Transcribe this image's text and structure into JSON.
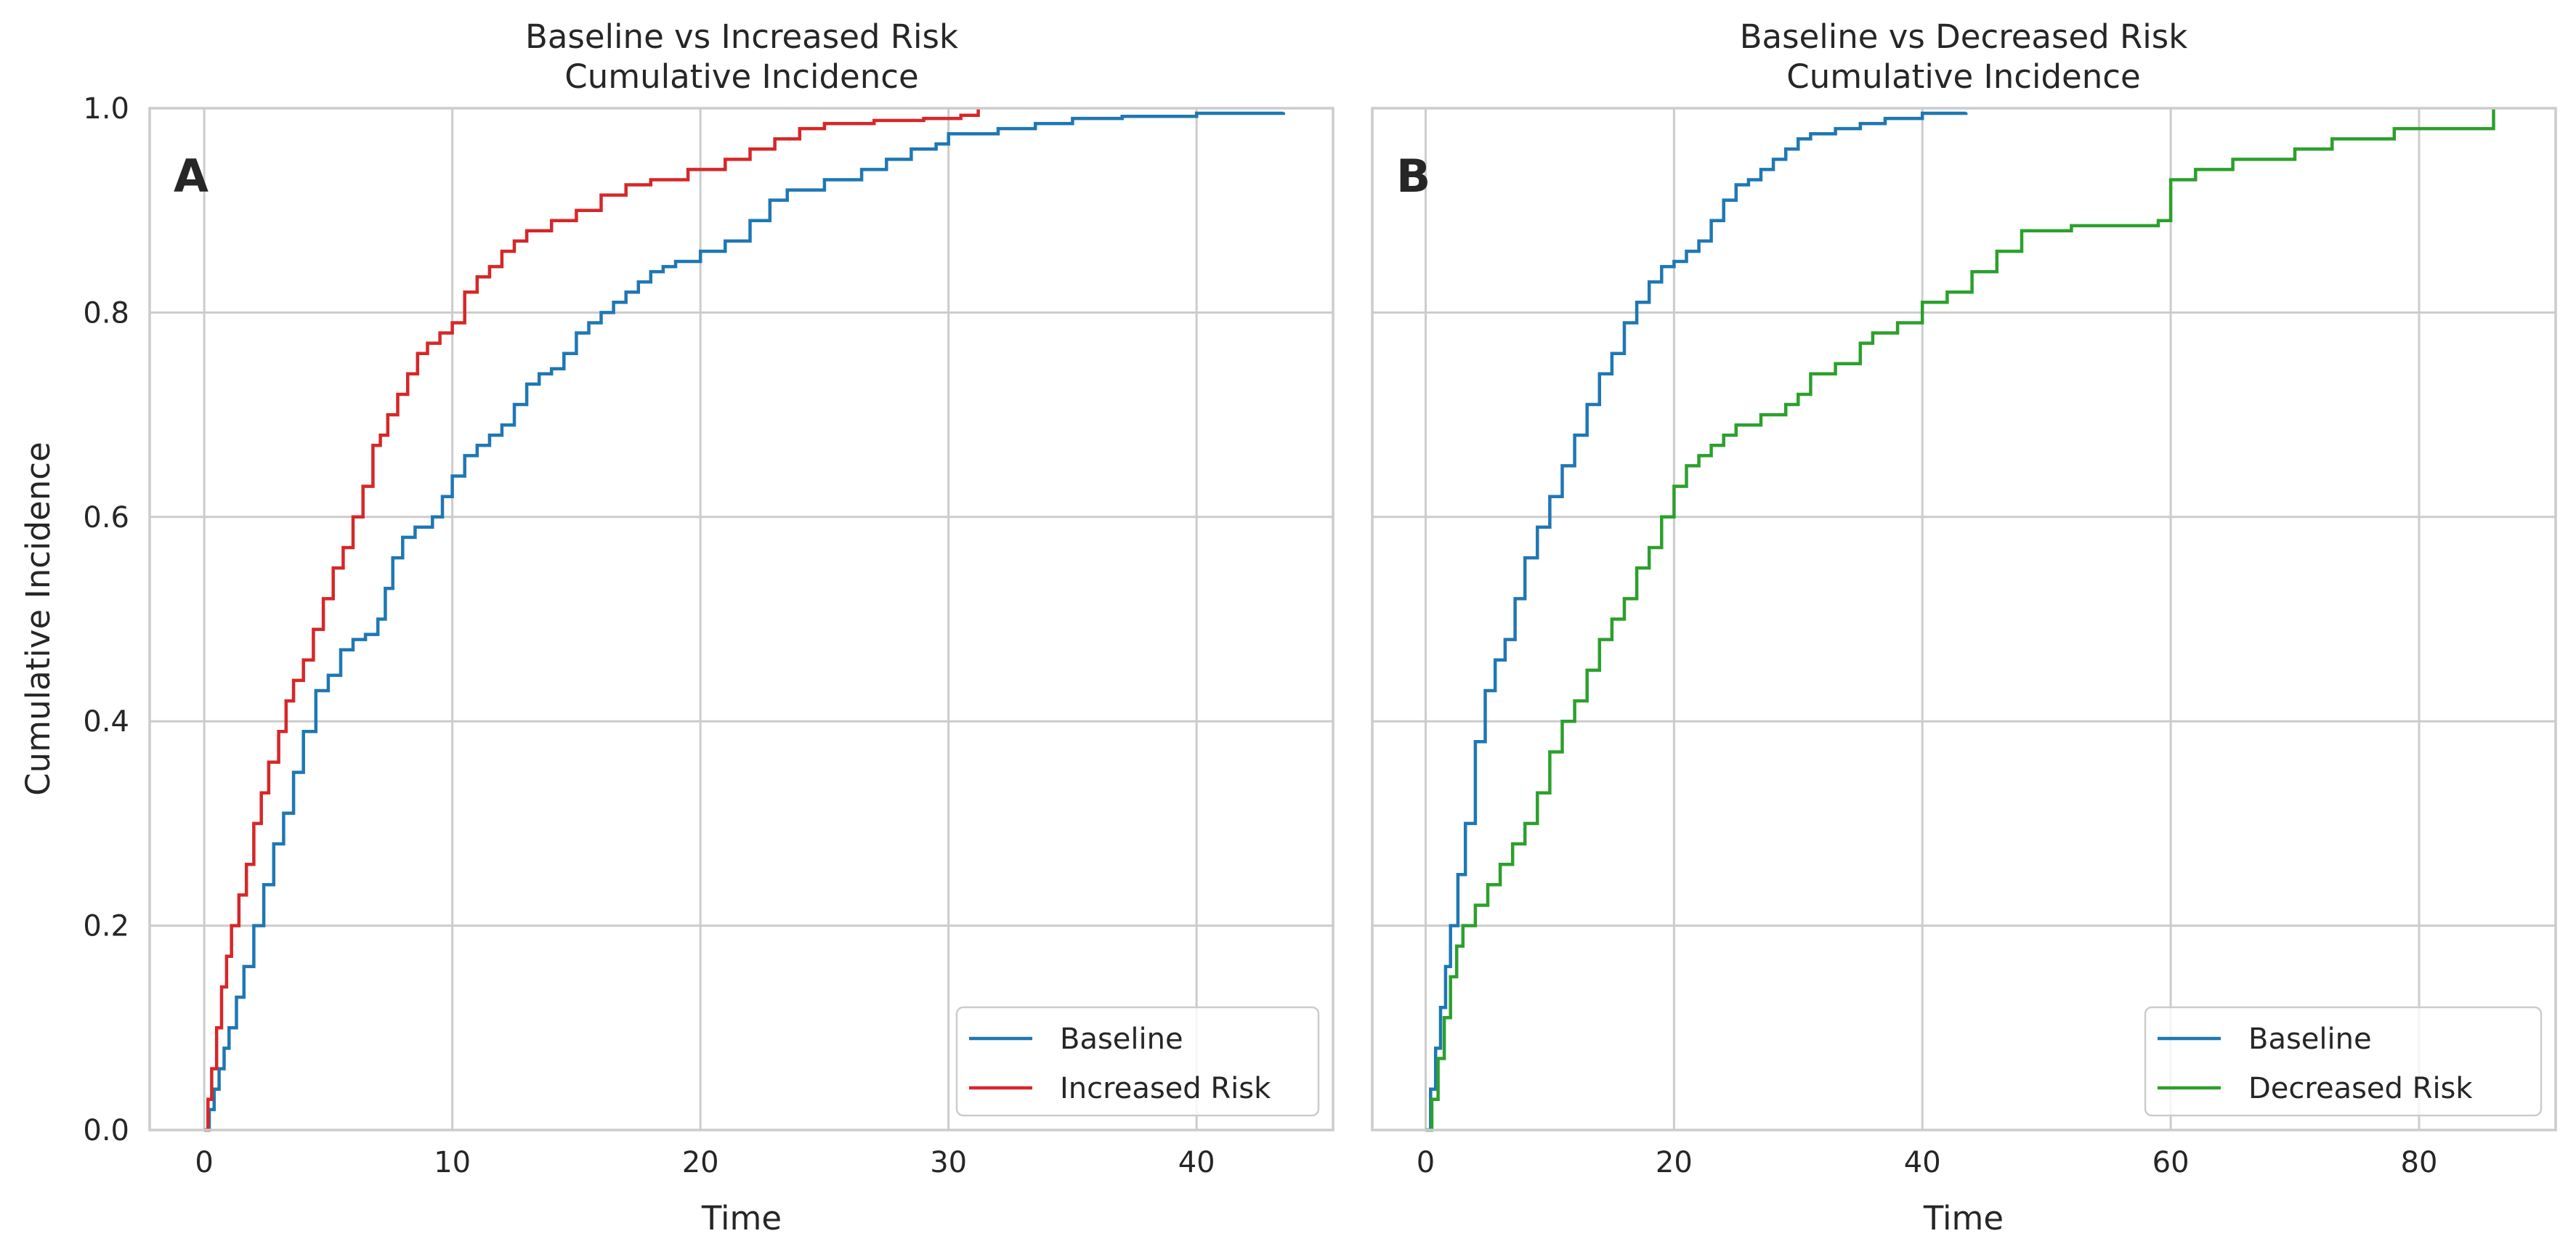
{
  "chart_data": [
    {
      "type": "line",
      "panel_letter": "A",
      "title": "Baseline vs Increased Risk\nCumulative Incidence",
      "xlabel": "Time",
      "ylabel": "Cumulative Incidence",
      "xlim": [
        -2.2,
        45.5
      ],
      "ylim": [
        0,
        1.0
      ],
      "xticks": [
        0,
        10,
        20,
        30,
        40
      ],
      "yticks": [
        0.0,
        0.2,
        0.4,
        0.6,
        0.8,
        1.0
      ],
      "ytick_labels": [
        "0.0",
        "0.2",
        "0.4",
        "0.6",
        "0.8",
        "1.0"
      ],
      "grid": true,
      "legend_position": "lower-right",
      "series": [
        {
          "name": "Baseline",
          "color": "#1f77b4",
          "step": true,
          "x": [
            0,
            0.2,
            0.4,
            0.6,
            0.8,
            1.0,
            1.3,
            1.6,
            2.0,
            2.4,
            2.8,
            3.2,
            3.6,
            4.0,
            4.5,
            5.0,
            5.5,
            6.0,
            6.5,
            7.0,
            7.3,
            7.6,
            8.0,
            8.5,
            9.2,
            9.6,
            10.0,
            10.5,
            11.0,
            11.5,
            12.0,
            12.5,
            13.0,
            13.5,
            14.0,
            14.5,
            15.0,
            15.5,
            16.0,
            16.5,
            17.0,
            17.5,
            18.0,
            18.5,
            19.0,
            20.0,
            21.0,
            22.0,
            22.8,
            23.5,
            25.0,
            26.5,
            27.5,
            28.5,
            29.5,
            30.0,
            32.0,
            33.5,
            35.0,
            37.0,
            40.0,
            43.5
          ],
          "y": [
            0,
            0.02,
            0.04,
            0.06,
            0.08,
            0.1,
            0.13,
            0.16,
            0.2,
            0.24,
            0.28,
            0.31,
            0.35,
            0.39,
            0.43,
            0.445,
            0.47,
            0.48,
            0.485,
            0.5,
            0.53,
            0.56,
            0.58,
            0.59,
            0.6,
            0.62,
            0.64,
            0.66,
            0.67,
            0.68,
            0.69,
            0.71,
            0.73,
            0.74,
            0.745,
            0.76,
            0.78,
            0.79,
            0.8,
            0.81,
            0.82,
            0.83,
            0.84,
            0.845,
            0.85,
            0.86,
            0.87,
            0.89,
            0.91,
            0.92,
            0.93,
            0.94,
            0.95,
            0.96,
            0.965,
            0.975,
            0.98,
            0.985,
            0.99,
            0.992,
            0.995,
            0.996
          ]
        },
        {
          "name": "Increased Risk",
          "color": "#d62728",
          "step": true,
          "x": [
            0,
            0.15,
            0.3,
            0.5,
            0.7,
            0.9,
            1.1,
            1.4,
            1.7,
            2.0,
            2.3,
            2.6,
            3.0,
            3.3,
            3.6,
            4.0,
            4.4,
            4.8,
            5.2,
            5.6,
            6.0,
            6.4,
            6.8,
            7.1,
            7.4,
            7.8,
            8.2,
            8.6,
            9.0,
            9.5,
            10.0,
            10.5,
            11.0,
            11.5,
            12.0,
            12.5,
            13.0,
            14.0,
            15.0,
            16.0,
            17.0,
            18.0,
            19.5,
            21.0,
            22.0,
            23.0,
            24.0,
            25.0,
            27.0,
            29.0,
            30.5,
            31.2
          ],
          "y": [
            0,
            0.03,
            0.06,
            0.1,
            0.14,
            0.17,
            0.2,
            0.23,
            0.26,
            0.3,
            0.33,
            0.36,
            0.39,
            0.42,
            0.44,
            0.46,
            0.49,
            0.52,
            0.55,
            0.57,
            0.6,
            0.63,
            0.67,
            0.68,
            0.7,
            0.72,
            0.74,
            0.76,
            0.77,
            0.78,
            0.79,
            0.82,
            0.835,
            0.845,
            0.86,
            0.87,
            0.88,
            0.89,
            0.9,
            0.915,
            0.925,
            0.93,
            0.94,
            0.95,
            0.96,
            0.97,
            0.98,
            0.985,
            0.988,
            0.99,
            0.993,
            1.0
          ]
        }
      ]
    },
    {
      "type": "line",
      "panel_letter": "B",
      "title": "Baseline vs Decreased Risk\nCumulative Incidence",
      "xlabel": "Time",
      "ylabel": "",
      "xlim": [
        -4.3,
        91.0
      ],
      "ylim": [
        0,
        1.0
      ],
      "xticks": [
        0,
        20,
        40,
        60,
        80
      ],
      "yticks": [
        0.0,
        0.2,
        0.4,
        0.6,
        0.8,
        1.0
      ],
      "grid": true,
      "legend_position": "lower-right",
      "series": [
        {
          "name": "Baseline",
          "color": "#1f77b4",
          "step": true,
          "x": [
            0,
            0.4,
            0.8,
            1.2,
            1.6,
            2.0,
            2.6,
            3.2,
            4.0,
            4.8,
            5.6,
            6.4,
            7.2,
            8.0,
            9.0,
            10.0,
            11.0,
            12.0,
            13.0,
            14.0,
            15.0,
            16.0,
            17.0,
            18.0,
            19.0,
            20.0,
            21.0,
            22.0,
            23.0,
            24.0,
            25.0,
            26.0,
            27.0,
            28.0,
            29.0,
            30.0,
            31.0,
            33.0,
            35.0,
            37.0,
            40.0,
            43.5
          ],
          "y": [
            0,
            0.04,
            0.08,
            0.12,
            0.16,
            0.2,
            0.25,
            0.3,
            0.38,
            0.43,
            0.46,
            0.48,
            0.52,
            0.56,
            0.59,
            0.62,
            0.65,
            0.68,
            0.71,
            0.74,
            0.76,
            0.79,
            0.81,
            0.83,
            0.845,
            0.85,
            0.86,
            0.87,
            0.89,
            0.91,
            0.925,
            0.93,
            0.94,
            0.95,
            0.96,
            0.97,
            0.975,
            0.98,
            0.985,
            0.99,
            0.995,
            0.996
          ]
        },
        {
          "name": "Decreased Risk",
          "color": "#2ca02c",
          "step": true,
          "x": [
            0,
            0.5,
            1.0,
            1.5,
            2.0,
            2.5,
            3.0,
            4.0,
            5.0,
            6.0,
            7.0,
            8.0,
            9.0,
            10.0,
            11.0,
            12.0,
            13.0,
            14.0,
            15.0,
            16.0,
            17.0,
            18.0,
            19.0,
            20.0,
            21.0,
            22.0,
            23.0,
            24.0,
            25.0,
            27.0,
            29.0,
            30.0,
            31.0,
            33.0,
            35.0,
            36.0,
            38.0,
            40.0,
            42.0,
            44.0,
            46.0,
            48.0,
            52.0,
            59.0,
            60.0,
            62.0,
            65.0,
            70.0,
            73.0,
            78.0,
            86.0
          ],
          "y": [
            0,
            0.03,
            0.07,
            0.11,
            0.15,
            0.18,
            0.2,
            0.22,
            0.24,
            0.26,
            0.28,
            0.3,
            0.33,
            0.37,
            0.4,
            0.42,
            0.45,
            0.48,
            0.5,
            0.52,
            0.55,
            0.57,
            0.6,
            0.63,
            0.65,
            0.66,
            0.67,
            0.68,
            0.69,
            0.7,
            0.71,
            0.72,
            0.74,
            0.75,
            0.77,
            0.78,
            0.79,
            0.81,
            0.82,
            0.84,
            0.86,
            0.88,
            0.885,
            0.89,
            0.93,
            0.94,
            0.95,
            0.96,
            0.97,
            0.98,
            1.0
          ]
        }
      ]
    }
  ]
}
